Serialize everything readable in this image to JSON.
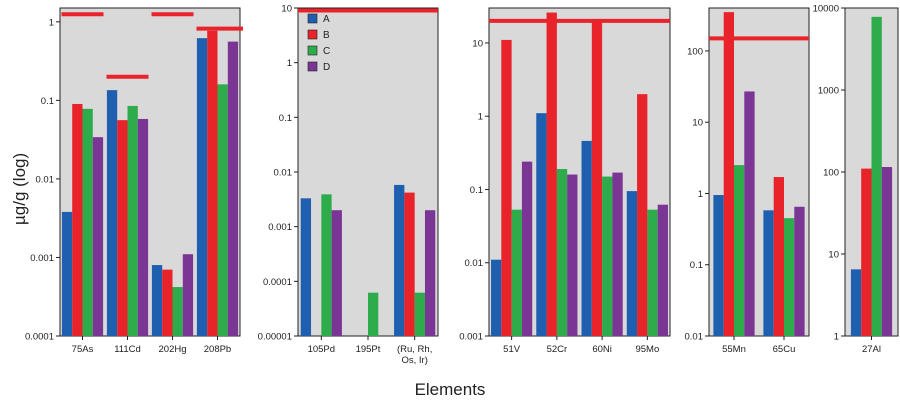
{
  "labels": {
    "ylabel": "µg/g (log)",
    "xlabel": "Elements"
  },
  "colors": {
    "A": "#1f5fb0",
    "B": "#e8232a",
    "C": "#2eab4a",
    "D": "#7b3595",
    "threshold": "#e8232a",
    "panel_bg": "#d9d9da"
  },
  "chart_data": [
    {
      "type": "bar",
      "scale": "log",
      "ylim": [
        0.0001,
        1.5
      ],
      "yticks": [
        "0.0001",
        "0.001",
        "0.01",
        "0.1",
        "1"
      ],
      "categories": [
        "75As",
        "111Cd",
        "202Hg",
        "208Pb"
      ],
      "series": [
        {
          "name": "A",
          "values": [
            0.0038,
            0.135,
            0.0008,
            0.62
          ]
        },
        {
          "name": "B",
          "values": [
            0.09,
            0.056,
            0.0007,
            0.77
          ]
        },
        {
          "name": "C",
          "values": [
            0.078,
            0.085,
            0.00042,
            0.16
          ]
        },
        {
          "name": "D",
          "values": [
            0.034,
            0.058,
            0.0011,
            0.56
          ]
        }
      ],
      "thresholds": [
        1.25,
        0.2,
        1.25,
        0.82
      ],
      "legend": null
    },
    {
      "type": "bar",
      "scale": "log",
      "ylim": [
        1e-05,
        10
      ],
      "yticks": [
        "0.00001",
        "0.0001",
        "0.001",
        "0.01",
        "0.1",
        "1",
        "10"
      ],
      "categories": [
        "105Pd",
        "195Pt",
        "(Ru, Rh,|Os, Ir)"
      ],
      "series": [
        {
          "name": "A",
          "values": [
            0.0033,
            null,
            0.0058
          ]
        },
        {
          "name": "B",
          "values": [
            null,
            null,
            0.0042
          ]
        },
        {
          "name": "C",
          "values": [
            0.0039,
            6.2e-05,
            6.2e-05
          ]
        },
        {
          "name": "D",
          "values": [
            0.002,
            null,
            0.002
          ]
        }
      ],
      "thresholds": [
        "all",
        9
      ],
      "legend": [
        "A",
        "B",
        "C",
        "D"
      ]
    },
    {
      "type": "bar",
      "scale": "log",
      "ylim": [
        0.001,
        30
      ],
      "yticks": [
        "0.001",
        "0.01",
        "0.1",
        "1",
        "10"
      ],
      "categories": [
        "51V",
        "52Cr",
        "60Ni",
        "95Mo"
      ],
      "series": [
        {
          "name": "A",
          "values": [
            0.011,
            1.1,
            0.46,
            0.095
          ]
        },
        {
          "name": "B",
          "values": [
            11,
            26,
            19,
            2
          ]
        },
        {
          "name": "C",
          "values": [
            0.053,
            0.19,
            0.15,
            0.053
          ]
        },
        {
          "name": "D",
          "values": [
            0.24,
            0.16,
            0.17,
            0.062
          ]
        }
      ],
      "thresholds": [
        "all",
        20
      ],
      "legend": null
    },
    {
      "type": "bar",
      "scale": "log",
      "ylim": [
        0.01,
        400
      ],
      "yticks": [
        "0.01",
        "0.1",
        "1",
        "10",
        "100"
      ],
      "categories": [
        "55Mn",
        "65Cu"
      ],
      "series": [
        {
          "name": "A",
          "values": [
            0.95,
            0.58
          ]
        },
        {
          "name": "B",
          "values": [
            350,
            1.7
          ]
        },
        {
          "name": "C",
          "values": [
            2.5,
            0.45
          ]
        },
        {
          "name": "D",
          "values": [
            27,
            0.65
          ]
        }
      ],
      "thresholds": [
        "all",
        150
      ],
      "legend": null
    },
    {
      "type": "bar",
      "scale": "log",
      "ylim": [
        1,
        10000
      ],
      "yticks": [
        "1",
        "10",
        "100",
        "1000",
        "10000"
      ],
      "categories": [
        "27Al"
      ],
      "series": [
        {
          "name": "A",
          "values": [
            6.5
          ]
        },
        {
          "name": "B",
          "values": [
            110
          ]
        },
        {
          "name": "C",
          "values": [
            7800
          ]
        },
        {
          "name": "D",
          "values": [
            115
          ]
        }
      ],
      "thresholds": null,
      "legend": null
    }
  ]
}
